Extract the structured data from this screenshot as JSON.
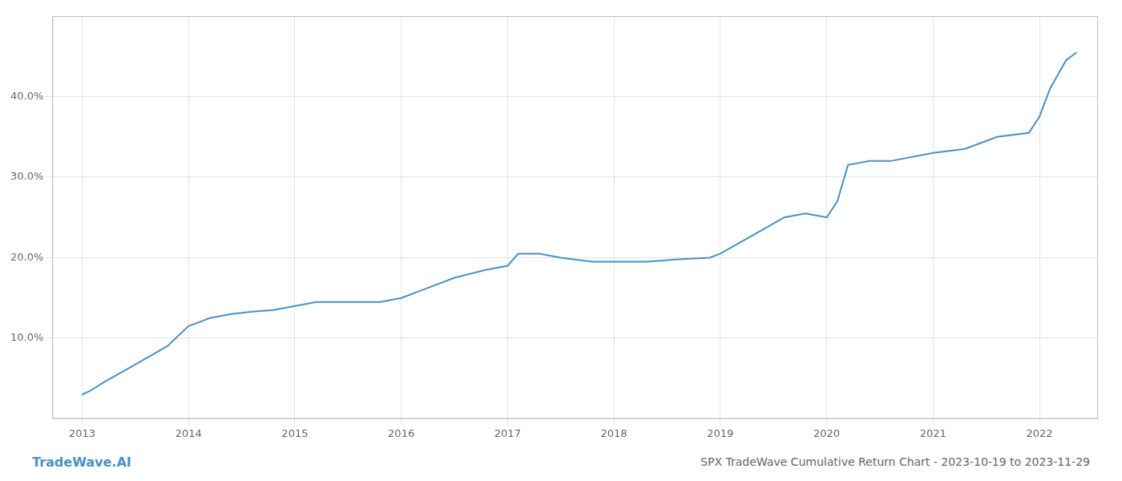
{
  "chart_data": {
    "type": "line",
    "title": "SPX TradeWave Cumulative Return Chart - 2023-10-19 to 2023-11-29",
    "annotations": [
      "TradeWave.AI"
    ],
    "color": "#4a90c4",
    "x": [
      2013.0,
      2013.08,
      2013.2,
      2013.4,
      2013.6,
      2013.8,
      2014.0,
      2014.1,
      2014.2,
      2014.4,
      2014.6,
      2014.8,
      2015.0,
      2015.2,
      2015.5,
      2015.8,
      2016.0,
      2016.2,
      2016.5,
      2016.8,
      2017.0,
      2017.1,
      2017.3,
      2017.5,
      2017.8,
      2018.0,
      2018.1,
      2018.3,
      2018.6,
      2018.9,
      2019.0,
      2019.2,
      2019.4,
      2019.6,
      2019.8,
      2020.0,
      2020.1,
      2020.2,
      2020.4,
      2020.6,
      2021.0,
      2021.3,
      2021.6,
      2021.9,
      2022.0,
      2022.1,
      2022.25,
      2022.35
    ],
    "values": [
      3.0,
      3.5,
      4.5,
      6.0,
      7.5,
      9.0,
      11.5,
      12.0,
      12.5,
      13.0,
      13.3,
      13.5,
      14.0,
      14.5,
      14.5,
      14.5,
      15.0,
      16.0,
      17.5,
      18.5,
      19.0,
      20.5,
      20.5,
      20.0,
      19.5,
      19.5,
      19.5,
      19.5,
      19.8,
      20.0,
      20.5,
      22.0,
      23.5,
      25.0,
      25.5,
      25.0,
      27.0,
      31.5,
      32.0,
      32.0,
      33.0,
      33.5,
      35.0,
      35.5,
      37.5,
      41.0,
      44.5,
      45.5
    ],
    "xlim": [
      2012.72,
      2022.55
    ],
    "xticks": [
      2013,
      2014,
      2015,
      2016,
      2017,
      2018,
      2019,
      2020,
      2021,
      2022
    ],
    "ylim": [
      0,
      50
    ],
    "yticks": [
      {
        "value": 10.0,
        "label": "10.0%"
      },
      {
        "value": 20.0,
        "label": "20.0%"
      },
      {
        "value": 30.0,
        "label": "30.0%"
      },
      {
        "value": 40.0,
        "label": "40.0%"
      }
    ],
    "grid": true
  }
}
